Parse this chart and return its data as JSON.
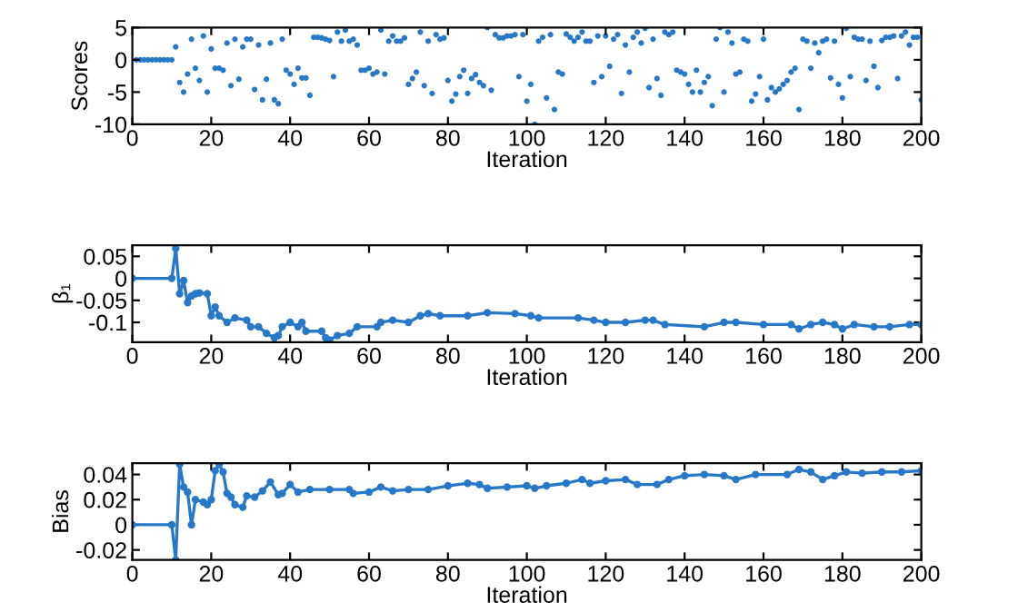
{
  "chart_data": [
    {
      "type": "scatter",
      "xlabel": "Iteration",
      "ylabel": "Scores",
      "xlim": [
        0,
        200
      ],
      "ylim": [
        -10,
        5
      ],
      "xticks": [
        0,
        20,
        40,
        60,
        80,
        100,
        120,
        140,
        160,
        180,
        200
      ],
      "yticks": [
        -10,
        -5,
        0,
        5
      ],
      "grid": false,
      "marker": "circle",
      "series": [
        {
          "color": "#2878c8",
          "x": [
            1,
            2,
            3,
            4,
            5,
            6,
            7,
            8,
            9,
            10,
            11,
            12,
            13,
            14,
            15,
            16,
            17,
            18,
            19,
            20,
            21,
            22,
            23,
            24,
            25,
            26,
            27,
            28,
            29,
            30,
            31,
            32,
            33,
            34,
            35,
            36,
            37,
            38,
            39,
            40,
            41,
            42,
            43,
            44,
            45,
            46,
            47,
            48,
            49,
            50,
            51,
            52,
            53,
            54,
            55,
            56,
            57,
            58,
            59,
            60,
            61,
            62,
            63,
            64,
            65,
            66,
            67,
            68,
            69,
            70,
            71,
            72,
            73,
            74,
            75,
            76,
            77,
            78,
            79,
            80,
            81,
            82,
            83,
            84,
            85,
            86,
            87,
            88,
            89,
            90,
            91,
            92,
            93,
            94,
            95,
            96,
            97,
            98,
            99,
            100,
            101,
            102,
            103,
            104,
            105,
            106,
            107,
            108,
            109,
            110,
            111,
            112,
            113,
            114,
            115,
            116,
            117,
            118,
            119,
            120,
            121,
            122,
            123,
            124,
            125,
            126,
            127,
            128,
            129,
            130,
            131,
            132,
            133,
            134,
            135,
            136,
            137,
            138,
            139,
            140,
            141,
            142,
            143,
            144,
            145,
            146,
            147,
            148,
            149,
            150,
            151,
            152,
            153,
            154,
            155,
            156,
            157,
            158,
            159,
            160,
            161,
            162,
            163,
            164,
            165,
            166,
            167,
            168,
            169,
            170,
            171,
            172,
            173,
            174,
            175,
            176,
            177,
            178,
            179,
            180,
            181,
            182,
            183,
            184,
            185,
            186,
            187,
            188,
            189,
            190,
            191,
            192,
            193,
            194,
            195,
            196,
            197,
            198,
            199,
            200
          ],
          "values": [
            0,
            0,
            0,
            0,
            0,
            0,
            0,
            0,
            0,
            0,
            2,
            -3.5,
            -5,
            -2.2,
            3.2,
            -1.3,
            -3.2,
            3.7,
            -5,
            1.7,
            -1.3,
            -1.3,
            -1.6,
            2.6,
            -4,
            3.2,
            -3,
            2,
            3.2,
            3.2,
            -4.6,
            2.3,
            -6.2,
            -3,
            2.6,
            -6.2,
            -6.8,
            3.2,
            -1.6,
            -2.2,
            -3.8,
            -1.3,
            -2.8,
            -2.8,
            -5.5,
            3.5,
            3.5,
            3.4,
            3.2,
            3,
            -2.6,
            4.3,
            2.9,
            4.6,
            2.9,
            3.2,
            2.3,
            -1.6,
            -1.6,
            -1.3,
            -2.2,
            -1.9,
            4.6,
            -2.2,
            2.9,
            3.7,
            2.9,
            2.9,
            3.4,
            -3.8,
            -2.9,
            -1.9,
            4.3,
            -4,
            2.9,
            -5.2,
            3.9,
            3.2,
            3.4,
            -3.2,
            -6.4,
            -5.3,
            -2.6,
            -1.6,
            -5.2,
            -2.9,
            -2.3,
            -3.5,
            -4,
            5,
            -4.7,
            3.9,
            3.4,
            3.4,
            3.7,
            3.7,
            3.9,
            -2.6,
            3.9,
            -6.4,
            -3.8,
            -10,
            2.9,
            3.5,
            -5.9,
            3.9,
            -7.7,
            -1.9,
            -2.2,
            4,
            3.5,
            2.9,
            3.5,
            4.3,
            2.9,
            2.9,
            -3.5,
            3.7,
            -2.6,
            3.7,
            -1,
            3.2,
            3.9,
            -5.2,
            2.3,
            -1.9,
            3.5,
            4.3,
            2.6,
            4.9,
            -4.3,
            3.2,
            -2.9,
            -5.5,
            4.3,
            3.9,
            4.3,
            -1.6,
            -1.9,
            -2.2,
            -3.8,
            -5,
            -1.6,
            -5,
            -3.5,
            -2.6,
            -7.1,
            3.2,
            5,
            -5,
            4.3,
            2.6,
            -2.2,
            -1.9,
            3.2,
            2.9,
            -6.4,
            -5.3,
            -2.6,
            3.2,
            -6.2,
            -4.3,
            -5,
            -4.5,
            -3.8,
            -3.2,
            -1.9,
            -1.3,
            -7.7,
            3.2,
            2.9,
            -1.3,
            2.6,
            1.1,
            2.9,
            3.2,
            -2.8,
            2.9,
            -3.8,
            -5.9,
            4.9,
            -2.6,
            3.5,
            3.2,
            3.2,
            -3.2,
            2.9,
            -1,
            -4.3,
            3,
            3.5,
            3.5,
            3.7,
            -2.9,
            3.7,
            4.3,
            2.3,
            3.5,
            3.5,
            -6.2
          ]
        }
      ]
    },
    {
      "type": "line",
      "xlabel": "Iteration",
      "ylabel": "β₁",
      "xlim": [
        0,
        200
      ],
      "ylim": [
        -0.145,
        0.075
      ],
      "xticks": [
        0,
        20,
        40,
        60,
        80,
        100,
        120,
        140,
        160,
        180,
        200
      ],
      "yticks": [
        -0.1,
        -0.05,
        0,
        0.05
      ],
      "grid": false,
      "marker": "circle",
      "line_style": "solid",
      "series": [
        {
          "color": "#2878c8",
          "x": [
            0,
            10,
            11,
            12,
            13,
            14,
            15,
            16,
            17,
            19,
            20,
            21,
            22,
            24,
            26,
            29,
            30,
            32,
            34,
            36,
            37,
            38,
            40,
            42,
            43,
            44,
            48,
            49,
            50,
            52,
            55,
            57,
            62,
            63,
            66,
            70,
            73,
            75,
            78,
            85,
            90,
            97,
            101,
            103,
            113,
            117,
            120,
            125,
            130,
            132,
            135,
            145,
            150,
            153,
            160,
            167,
            169,
            172,
            175,
            178,
            180,
            183,
            188,
            192,
            197,
            200
          ],
          "values": [
            0,
            0,
            0.068,
            -0.035,
            -0.005,
            -0.055,
            -0.04,
            -0.035,
            -0.033,
            -0.035,
            -0.085,
            -0.065,
            -0.085,
            -0.1,
            -0.09,
            -0.095,
            -0.11,
            -0.11,
            -0.125,
            -0.135,
            -0.13,
            -0.11,
            -0.1,
            -0.11,
            -0.1,
            -0.12,
            -0.12,
            -0.135,
            -0.14,
            -0.13,
            -0.125,
            -0.11,
            -0.11,
            -0.1,
            -0.095,
            -0.1,
            -0.085,
            -0.08,
            -0.085,
            -0.085,
            -0.078,
            -0.08,
            -0.085,
            -0.09,
            -0.09,
            -0.095,
            -0.1,
            -0.1,
            -0.095,
            -0.095,
            -0.105,
            -0.11,
            -0.1,
            -0.1,
            -0.105,
            -0.105,
            -0.115,
            -0.105,
            -0.1,
            -0.105,
            -0.115,
            -0.105,
            -0.11,
            -0.11,
            -0.105,
            -0.105
          ]
        }
      ]
    },
    {
      "type": "line",
      "xlabel": "Iteration",
      "ylabel": "Bias",
      "xlim": [
        0,
        200
      ],
      "ylim": [
        -0.028,
        0.049
      ],
      "xticks": [
        0,
        20,
        40,
        60,
        80,
        100,
        120,
        140,
        160,
        180,
        200
      ],
      "yticks": [
        -0.02,
        0,
        0.02,
        0.04
      ],
      "grid": false,
      "marker": "circle",
      "line_style": "solid",
      "series": [
        {
          "color": "#2878c8",
          "x": [
            0,
            10,
            11,
            12,
            13,
            14,
            15,
            16,
            18,
            19,
            20,
            21,
            22,
            23,
            24,
            25,
            26,
            28,
            29,
            31,
            33,
            35,
            37,
            38,
            40,
            42,
            45,
            50,
            55,
            56,
            60,
            63,
            66,
            70,
            75,
            80,
            85,
            88,
            90,
            95,
            100,
            102,
            105,
            110,
            114,
            116,
            120,
            125,
            128,
            133,
            136,
            140,
            145,
            150,
            153,
            158,
            166,
            169,
            172,
            175,
            178,
            181,
            185,
            190,
            195,
            200
          ],
          "values": [
            0,
            0,
            -0.028,
            0.048,
            0.03,
            0.026,
            0,
            0.02,
            0.018,
            0.016,
            0.02,
            0.043,
            0.048,
            0.042,
            0.025,
            0.022,
            0.016,
            0.014,
            0.023,
            0.022,
            0.027,
            0.034,
            0.024,
            0.025,
            0.032,
            0.026,
            0.028,
            0.028,
            0.028,
            0.025,
            0.026,
            0.03,
            0.027,
            0.028,
            0.028,
            0.031,
            0.033,
            0.032,
            0.029,
            0.03,
            0.031,
            0.029,
            0.031,
            0.033,
            0.036,
            0.033,
            0.035,
            0.036,
            0.032,
            0.032,
            0.036,
            0.039,
            0.04,
            0.039,
            0.036,
            0.04,
            0.04,
            0.044,
            0.042,
            0.036,
            0.039,
            0.042,
            0.041,
            0.042,
            0.042,
            0.043
          ]
        }
      ]
    }
  ]
}
